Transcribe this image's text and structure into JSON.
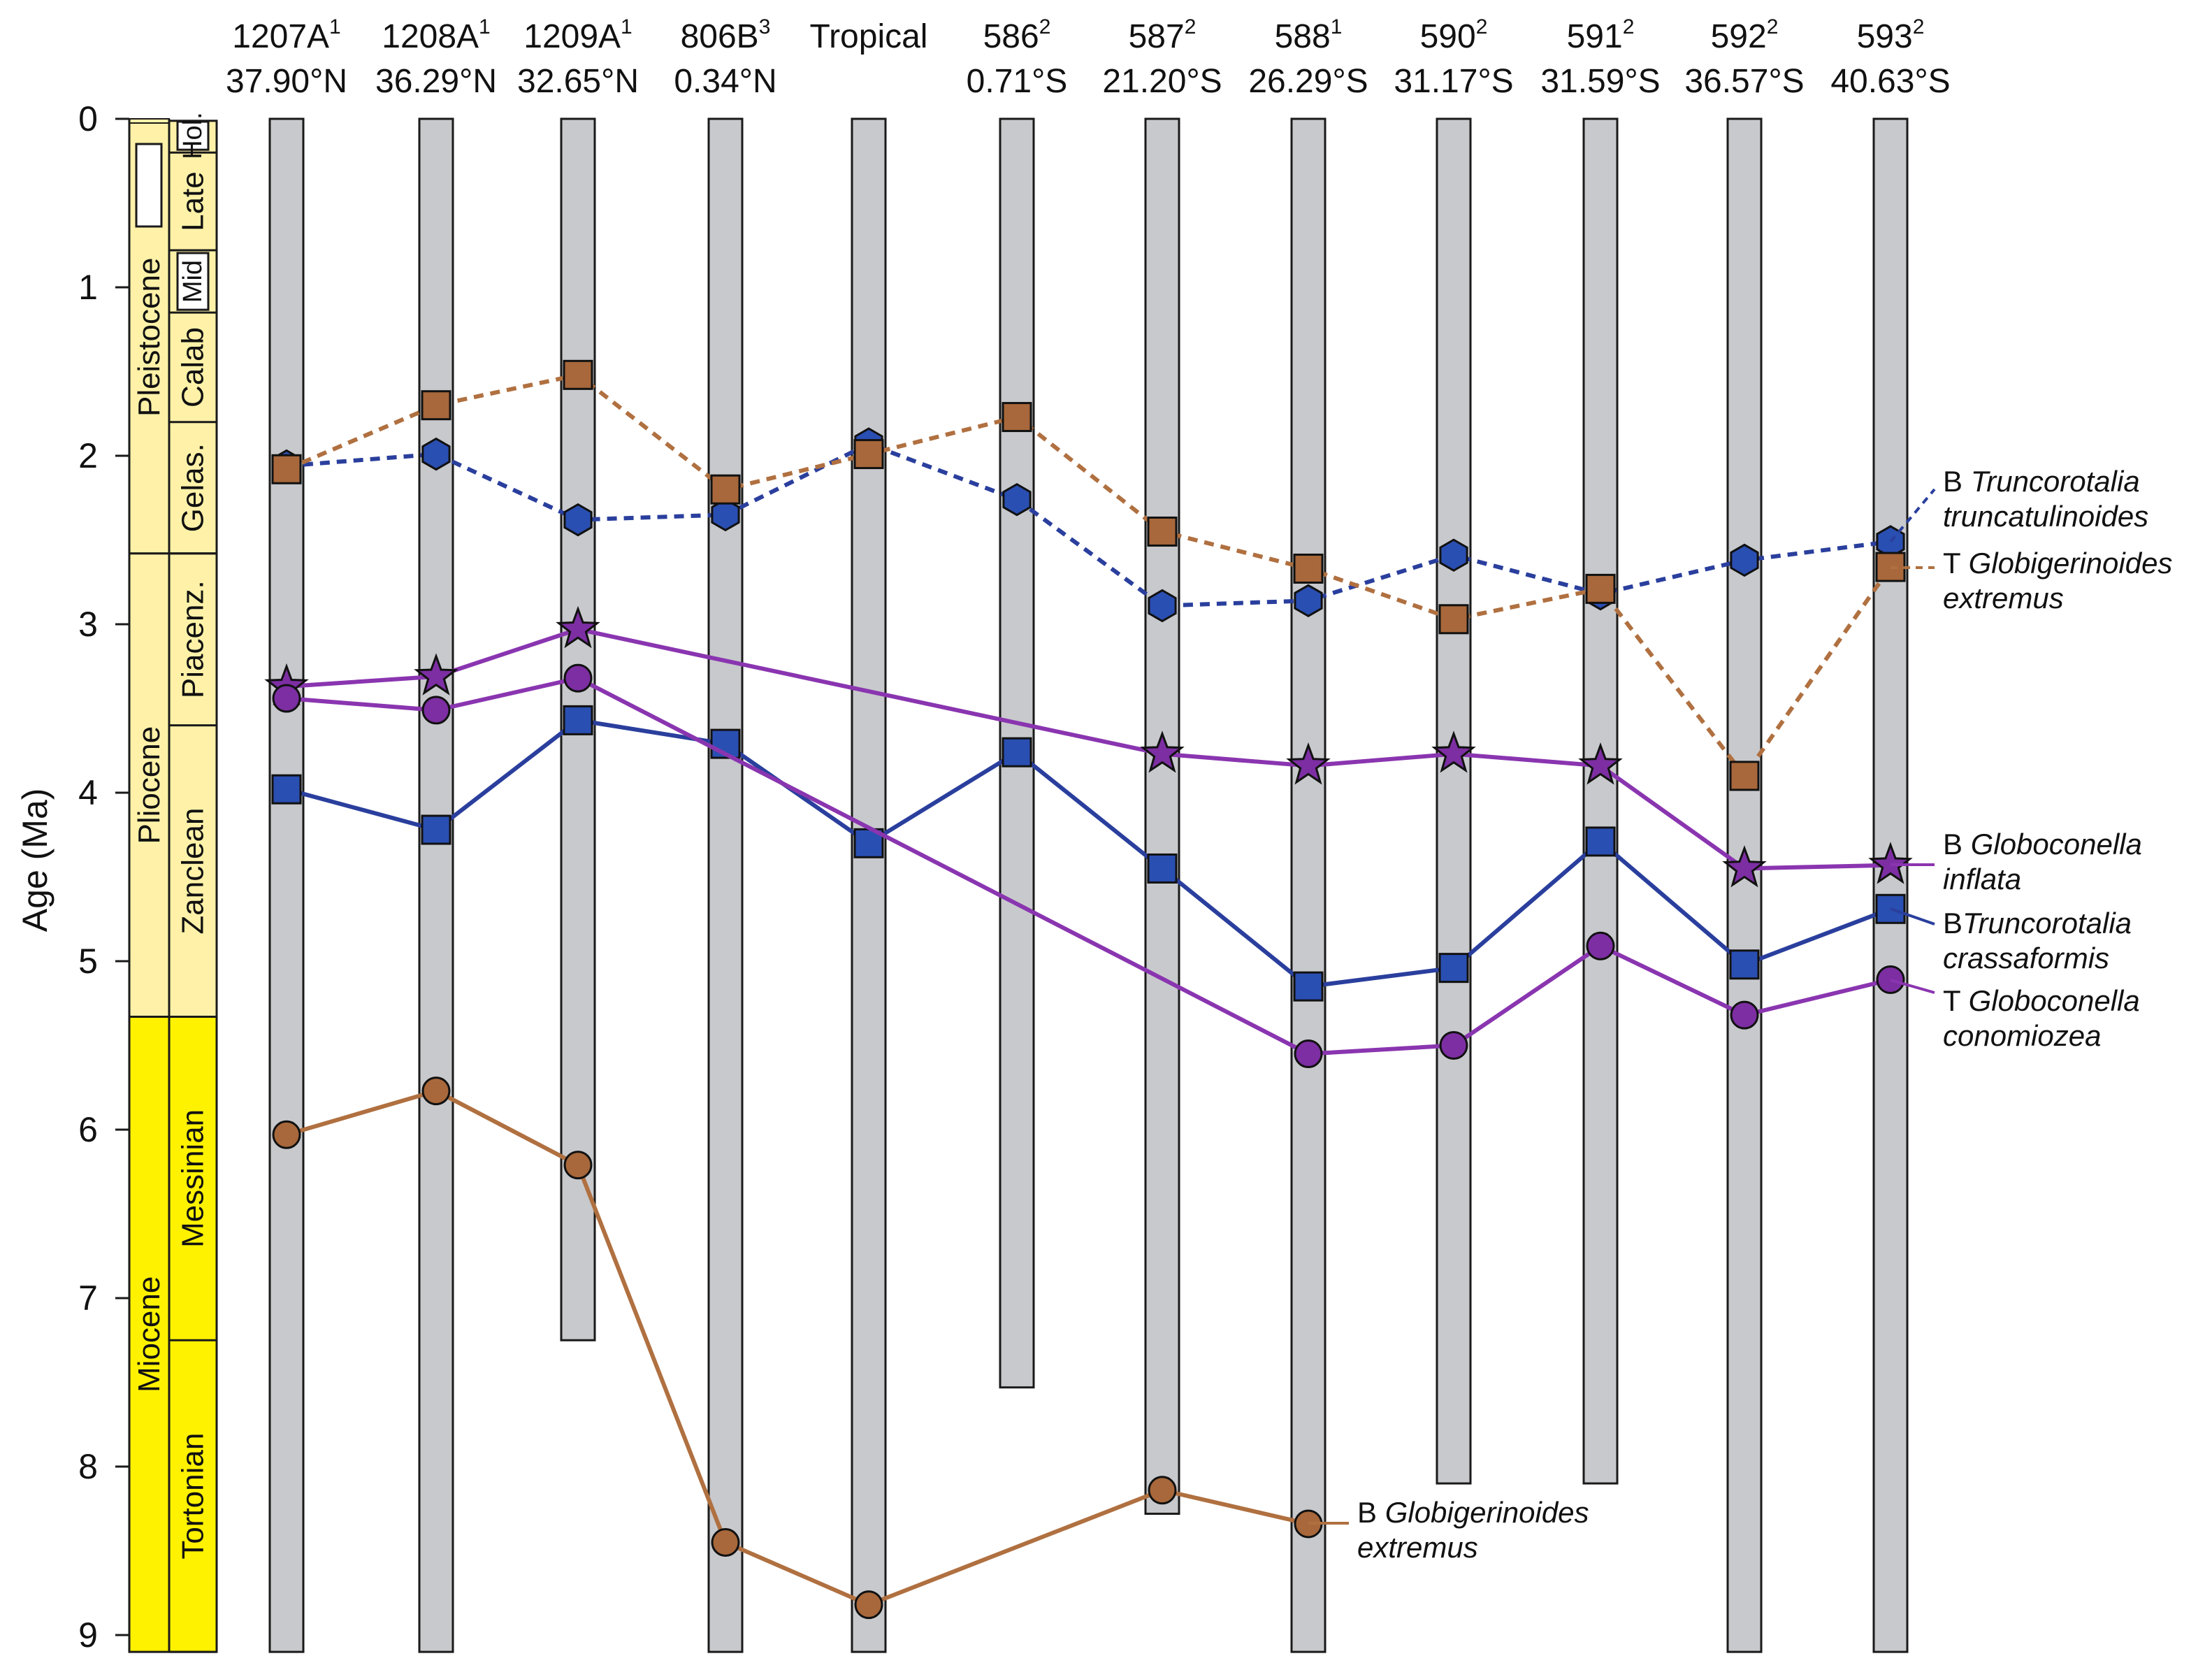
{
  "chart_data": {
    "type": "line",
    "ylabel": "Age (Ma)",
    "ylim": [
      0,
      9
    ],
    "y_inverted": true,
    "yticks": [
      "0",
      "1",
      "2",
      "3",
      "4",
      "5",
      "6",
      "7",
      "8",
      "9"
    ],
    "sites": [
      {
        "id": "s1207",
        "name": "1207A",
        "sup": "1",
        "lat": "37.90°N",
        "base_age": 9.1
      },
      {
        "id": "s1208",
        "name": "1208A",
        "sup": "1",
        "lat": "36.29°N",
        "base_age": 9.1
      },
      {
        "id": "s1209",
        "name": "1209A",
        "sup": "1",
        "lat": "32.65°N",
        "base_age": 7.25
      },
      {
        "id": "s806",
        "name": "806B",
        "sup": "3",
        "lat": "0.34°N",
        "base_age": 9.1
      },
      {
        "id": "trop",
        "name": "Tropical",
        "sup": "",
        "lat": "",
        "base_age": 9.1
      },
      {
        "id": "s586",
        "name": "586",
        "sup": "2",
        "lat": "0.71°S",
        "base_age": 7.53
      },
      {
        "id": "s587",
        "name": "587",
        "sup": "2",
        "lat": "21.20°S",
        "base_age": 8.28
      },
      {
        "id": "s588",
        "name": "588",
        "sup": "1",
        "lat": "26.29°S",
        "base_age": 9.1
      },
      {
        "id": "s590",
        "name": "590",
        "sup": "2",
        "lat": "31.17°S",
        "base_age": 8.1
      },
      {
        "id": "s591",
        "name": "591",
        "sup": "2",
        "lat": "31.59°S",
        "base_age": 8.1
      },
      {
        "id": "s592",
        "name": "592",
        "sup": "2",
        "lat": "36.57°S",
        "base_age": 9.1
      },
      {
        "id": "s593",
        "name": "593",
        "sup": "2",
        "lat": "40.63°S",
        "base_age": 9.1
      }
    ],
    "series": [
      {
        "name": "B Truncorotalia truncatulinoides",
        "prefix": "B ",
        "species": "Truncorotalia",
        "species2": "truncatulinoides",
        "color": "#2a3f9d",
        "fill": "#2a4fb2",
        "dash": true,
        "marker": "hexagon",
        "points": [
          [
            0,
            2.06
          ],
          [
            1,
            1.99
          ],
          [
            2,
            2.38
          ],
          [
            3,
            2.35
          ],
          [
            4,
            1.93
          ],
          [
            5,
            2.26
          ],
          [
            6,
            2.89
          ],
          [
            7,
            2.86
          ],
          [
            8,
            2.59
          ],
          [
            9,
            2.82
          ],
          [
            10,
            2.62
          ],
          [
            11,
            2.51
          ]
        ]
      },
      {
        "name": "T Globigerinoides extremus",
        "prefix": "T ",
        "species": "Globigerinoides",
        "species2": "extremus",
        "color": "#b07040",
        "fill": "#a8683b",
        "dash": true,
        "marker": "square",
        "points": [
          [
            0,
            2.08
          ],
          [
            1,
            1.7
          ],
          [
            2,
            1.52
          ],
          [
            3,
            2.2
          ],
          [
            4,
            1.99
          ],
          [
            5,
            1.77
          ],
          [
            6,
            2.45
          ],
          [
            7,
            2.67
          ],
          [
            8,
            2.97
          ],
          [
            9,
            2.79
          ],
          [
            10,
            3.9
          ],
          [
            11,
            2.66
          ]
        ]
      },
      {
        "name": "B Globoconella inflata",
        "prefix": "B ",
        "species": "Globoconella",
        "species2": "inflata",
        "color": "#8a35b0",
        "fill": "#7d2ea3",
        "dash": false,
        "marker": "star",
        "points": [
          [
            0,
            3.37
          ],
          [
            1,
            3.31
          ],
          [
            2,
            3.03
          ],
          [
            6,
            3.77
          ],
          [
            7,
            3.84
          ],
          [
            8,
            3.77
          ],
          [
            9,
            3.84
          ],
          [
            10,
            4.45
          ],
          [
            11,
            4.43
          ]
        ]
      },
      {
        "name": "BTruncorotalia crassaformis",
        "prefix": "B",
        "species": "Truncorotalia",
        "species2": "crassaformis",
        "color": "#2a3f9d",
        "fill": "#2a4fb2",
        "dash": false,
        "marker": "square",
        "points": [
          [
            0,
            3.98
          ],
          [
            1,
            4.22
          ],
          [
            2,
            3.57
          ],
          [
            3,
            3.71
          ],
          [
            4,
            4.3
          ],
          [
            5,
            3.76
          ],
          [
            6,
            4.45
          ],
          [
            7,
            5.15
          ],
          [
            8,
            5.04
          ],
          [
            9,
            4.29
          ],
          [
            10,
            5.02
          ],
          [
            11,
            4.69
          ]
        ]
      },
      {
        "name": "T Globoconella conomiozea",
        "prefix": "T ",
        "species": "Globoconella",
        "species2": "conomiozea",
        "color": "#8a35b0",
        "fill": "#7d2ea3",
        "dash": false,
        "marker": "circle",
        "points": [
          [
            0,
            3.44
          ],
          [
            1,
            3.51
          ],
          [
            2,
            3.32
          ],
          [
            7,
            5.55
          ],
          [
            8,
            5.5
          ],
          [
            9,
            4.91
          ],
          [
            10,
            5.32
          ],
          [
            11,
            5.11
          ]
        ]
      },
      {
        "name": "B Globigerinoides extremus",
        "prefix": "B ",
        "species": "Globigerinoides",
        "species2": "extremus",
        "color": "#b07040",
        "fill": "#a8683b",
        "dash": false,
        "marker": "circle",
        "points": [
          [
            0,
            6.03
          ],
          [
            1,
            5.77
          ],
          [
            2,
            6.21
          ],
          [
            3,
            8.45
          ],
          [
            4,
            8.82
          ],
          [
            6,
            8.14
          ],
          [
            7,
            8.34
          ]
        ]
      }
    ],
    "chronostratigraphy": {
      "epochs": [
        {
          "label": "Pleistocene",
          "from": 0.0117,
          "to": 2.58,
          "color": "#fff2a8"
        },
        {
          "label": "Pliocene",
          "from": 2.58,
          "to": 5.33,
          "color": "#fff2a8"
        },
        {
          "label": "Miocene",
          "from": 5.33,
          "to": 9.1,
          "color": "#fff200"
        }
      ],
      "holocene": {
        "label": "Hol.",
        "from": 0,
        "to": 0.0117
      },
      "stages": [
        {
          "label": "Hol.",
          "from": 0,
          "to": 0.2,
          "box": true
        },
        {
          "label": "Late",
          "from": 0.2,
          "to": 0.78,
          "box": false
        },
        {
          "label": "Mid",
          "from": 0.78,
          "to": 1.15,
          "box": true
        },
        {
          "label": "Calab",
          "from": 1.15,
          "to": 1.8,
          "box": false
        },
        {
          "label": "Gelas.",
          "from": 1.8,
          "to": 2.58,
          "box": false
        },
        {
          "label": "Piacenz.",
          "from": 2.58,
          "to": 3.6,
          "box": false
        },
        {
          "label": "Zanclean",
          "from": 3.6,
          "to": 5.33,
          "box": false
        },
        {
          "label": "Messinian",
          "from": 5.33,
          "to": 7.25,
          "box": false
        },
        {
          "label": "Tortonian",
          "from": 7.25,
          "to": 9.1,
          "box": false
        }
      ]
    }
  },
  "colors": {
    "column_fill": "#c8c9cc",
    "column_stroke": "#1a1a1a",
    "pale_yellow": "#fff2a8",
    "bright_yellow": "#fff200"
  }
}
